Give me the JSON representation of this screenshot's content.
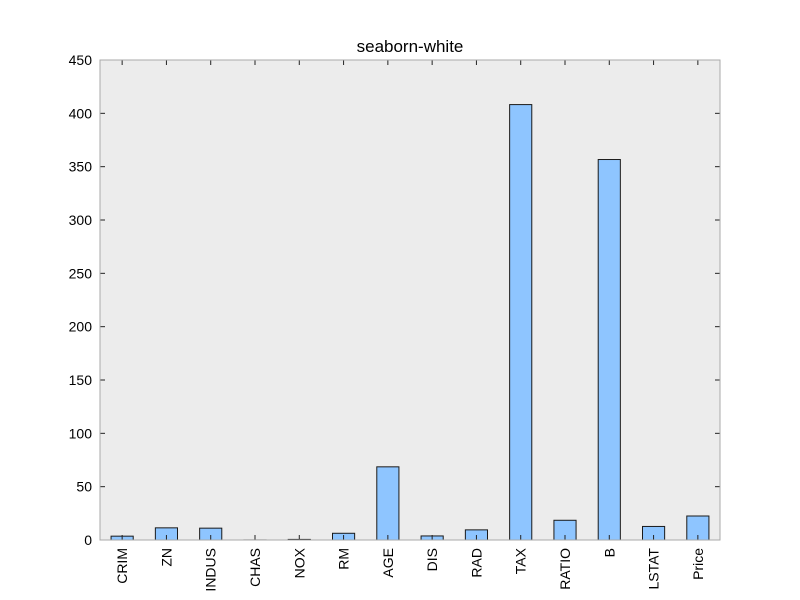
{
  "chart_data": {
    "type": "bar",
    "title": "seaborn-white",
    "xlabel": "",
    "ylabel": "",
    "categories": [
      "CRIM",
      "ZN",
      "INDUS",
      "CHAS",
      "NOX",
      "RM",
      "AGE",
      "DIS",
      "RAD",
      "TAX",
      "RATIO",
      "B",
      "LSTAT",
      "Price"
    ],
    "values": [
      3.6,
      11.4,
      11.1,
      0.07,
      0.55,
      6.3,
      68.6,
      3.8,
      9.5,
      408.2,
      18.5,
      356.7,
      12.7,
      22.5
    ],
    "ylim": [
      0,
      450
    ],
    "yticks": [
      0,
      50,
      100,
      150,
      200,
      250,
      300,
      350,
      400,
      450
    ],
    "grid": false,
    "legend": "none",
    "colors": {
      "plot_background": "#ececec",
      "bar_fill": "#8ec5ff",
      "bar_edge": "#1a1a1a",
      "spine": "#aaaaaa"
    }
  }
}
